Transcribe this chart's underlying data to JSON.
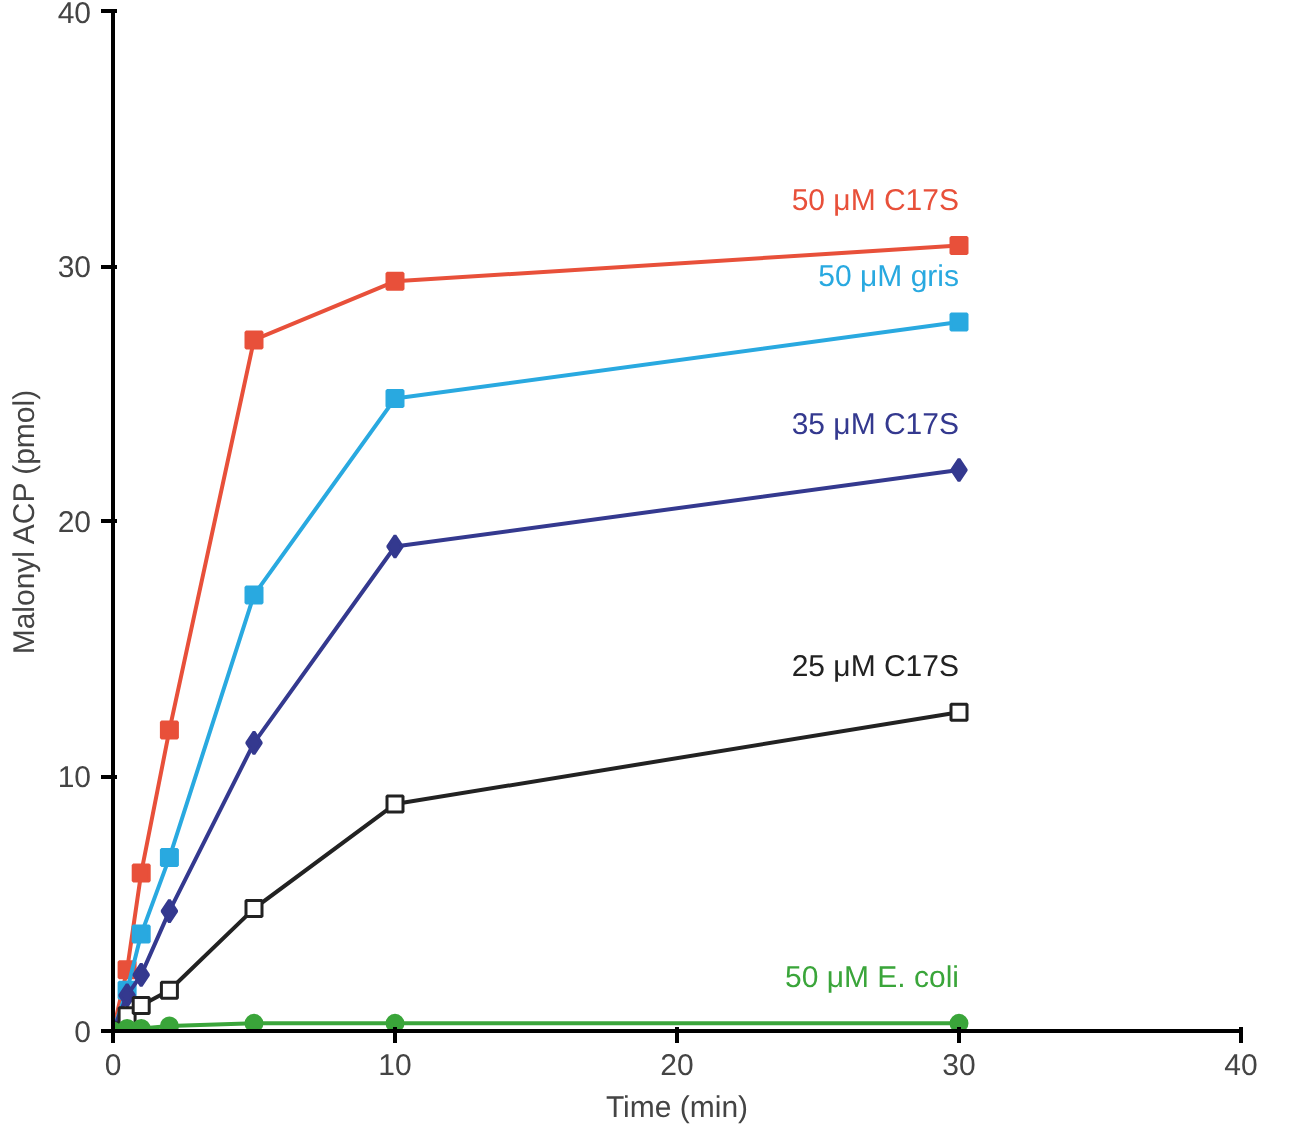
{
  "chart_data": {
    "type": "line",
    "xlabel": "Time (min)",
    "ylabel": "Malonyl ACP (pmol)",
    "xlim": [
      0,
      40
    ],
    "ylim": [
      0,
      40
    ],
    "xticks": [
      0,
      10,
      20,
      30,
      40
    ],
    "yticks": [
      0,
      10,
      20,
      30,
      40
    ],
    "grid": false,
    "legend": false,
    "line_style": "solid",
    "x": [
      0,
      0.5,
      1,
      2,
      5,
      10,
      30
    ],
    "series": [
      {
        "name": "50 μM C17S",
        "color": "#e8503a",
        "marker": "square",
        "values": [
          0,
          2.4,
          6.2,
          11.8,
          27.1,
          29.4,
          30.8
        ]
      },
      {
        "name": "50 μM gris",
        "color": "#29a9e0",
        "marker": "square",
        "values": [
          0,
          1.6,
          3.8,
          6.8,
          17.1,
          24.8,
          27.8
        ]
      },
      {
        "name": "35 μM C17S",
        "color": "#34398f",
        "marker": "diamond",
        "values": [
          0,
          1.4,
          2.2,
          4.7,
          11.3,
          19.0,
          22.0
        ]
      },
      {
        "name": "25 μM C17S",
        "color": "#222222",
        "marker": "square",
        "values": [
          0,
          0.6,
          1.0,
          1.6,
          4.8,
          8.9,
          12.5
        ]
      },
      {
        "name": "50 μM E. coli",
        "color": "#3aa53a",
        "marker": "circle",
        "values": [
          0,
          0.1,
          0.1,
          0.2,
          0.3,
          0.3,
          0.3
        ]
      }
    ]
  }
}
